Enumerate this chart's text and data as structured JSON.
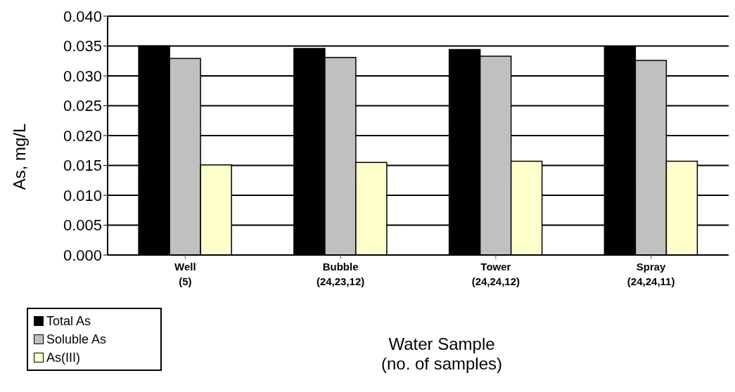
{
  "chart_data": {
    "type": "bar",
    "ylabel": "As, mg/L",
    "xlabel": "Water Sample\n(no. of samples)",
    "categories": [
      "Well\n(5)",
      "Bubble\n(24,23,12)",
      "Tower\n(24,24,12)",
      "Spray\n(24,24,11)"
    ],
    "series": [
      {
        "name": "Total As",
        "color": "#000000",
        "values": [
          0.035,
          0.0346,
          0.0344,
          0.0349
        ]
      },
      {
        "name": "Soluble As",
        "color": "#c0c0c0",
        "values": [
          0.0329,
          0.0331,
          0.0333,
          0.0326
        ]
      },
      {
        "name": "As(III)",
        "color": "#ffffcc",
        "values": [
          0.0151,
          0.0155,
          0.0157,
          0.0157
        ]
      }
    ],
    "ylim": [
      0,
      0.04
    ],
    "yticks": [
      {
        "value": 0,
        "label": "0.000"
      },
      {
        "value": 0.005,
        "label": "0.005"
      },
      {
        "value": 0.01,
        "label": "0.010"
      },
      {
        "value": 0.015,
        "label": "0.015"
      },
      {
        "value": 0.02,
        "label": "0.020"
      },
      {
        "value": 0.025,
        "label": "0.025"
      },
      {
        "value": 0.03,
        "label": "0.030"
      },
      {
        "value": 0.035,
        "label": "0.035"
      },
      {
        "value": 0.04,
        "label": "0.040"
      }
    ],
    "grid": "y",
    "legend": "bottom left"
  }
}
